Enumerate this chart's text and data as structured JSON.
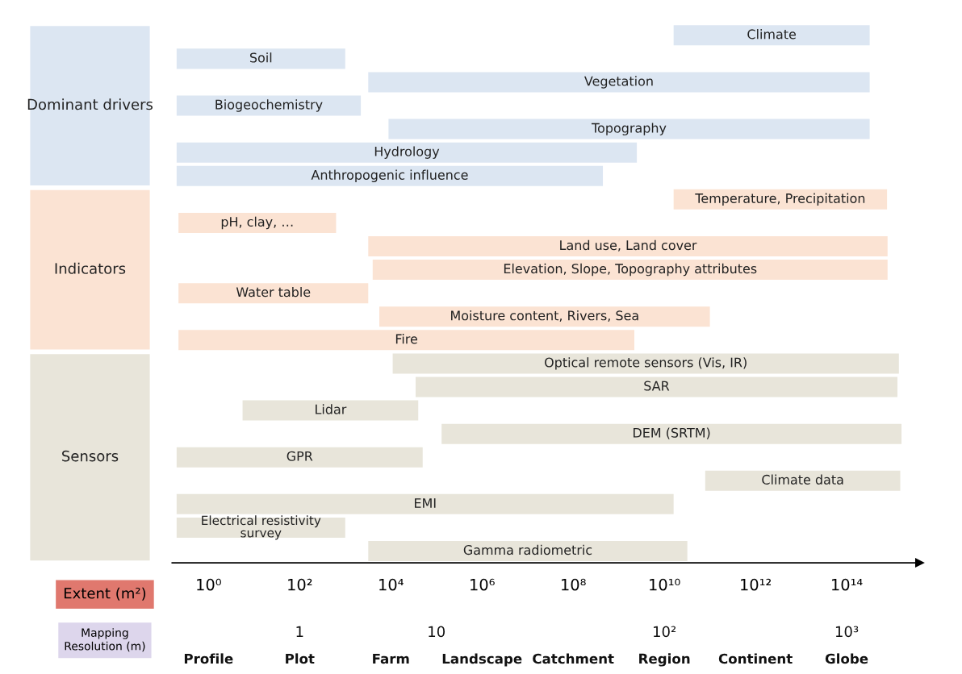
{
  "chart_data": {
    "type": "bar",
    "orientation": "horizontal",
    "log": "x",
    "categories": [
      null,
      null,
      null,
      "Dominant drivers",
      null,
      null,
      null,
      null,
      null,
      null,
      "Indicators",
      null,
      null,
      null,
      null,
      null,
      null,
      null,
      "Sensors",
      null,
      null,
      null,
      null
    ],
    "base": [
      16000000000.0,
      0.2,
      3200,
      0.2,
      8900,
      0.2,
      0.2,
      16000000000.0,
      0.22,
      3200,
      4000,
      0.22,
      5600,
      0.22,
      11000,
      35000,
      5.6,
      130000.0,
      0.2,
      79000000000.0,
      0.2,
      0.2,
      3200
    ],
    "values": [
      320000000000000.0,
      1000,
      320000000000000.0,
      2200,
      320000000000000.0,
      2500000000.0,
      450000000.0,
      770000000000000.0,
      630,
      790000000000000.0,
      790000000000000.0,
      3200,
      100000000000.0,
      2200000000.0,
      1400000000000000.0,
      1300000000000000.0,
      40000,
      1600000000000000.0,
      50000,
      1500000000000000.0,
      16000000000.0,
      1000,
      32000000000.0
    ],
    "value_labels": [
      "Climate",
      "Soil",
      "Vegetation",
      "Biogeochemistry",
      "Topography",
      "Hydrology",
      "Anthropogenic influence",
      "Temperature, Precipitation",
      "pH, clay, …",
      "Land use, Land cover",
      "Elevation, Slope, Topography attributes",
      "Water table",
      "Moisture content, Rivers, Sea",
      "Fire",
      "Optical remote sensors (Vis, IR)",
      "SAR",
      "Lidar",
      "DEM (SRTM)",
      "GPR",
      "Climate data",
      "EMI",
      "Electrical resistivity\nsurvey",
      "Gamma radiometric"
    ],
    "colors": [
      "#dce6f2",
      "#dce6f2",
      "#dce6f2",
      "#dce6f2",
      "#dce6f2",
      "#dce6f2",
      "#dce6f2",
      "#fbe3d3",
      "#fbe3d3",
      "#fbe3d3",
      "#fbe3d3",
      "#fbe3d3",
      "#fbe3d3",
      "#fbe3d3",
      "#e8e5da",
      "#e8e5da",
      "#e8e5da",
      "#e8e5da",
      "#e8e5da",
      "#e8e5da",
      "#e8e5da",
      "#e8e5da",
      "#e8e5da"
    ],
    "xlim": [
      0.16,
      4000000000000000.0
    ],
    "xticks": [
      {
        "value": 1,
        "label": "10⁰"
      },
      {
        "value": 100,
        "label": "10²"
      },
      {
        "value": 10000,
        "label": "10⁴"
      },
      {
        "value": 1000000.0,
        "label": "10⁶"
      },
      {
        "value": 100000000.0,
        "label": "10⁸"
      },
      {
        "value": 10000000000.0,
        "label": "10¹⁰"
      },
      {
        "value": 1000000000000.0,
        "label": "10¹²"
      },
      {
        "value": 100000000000000.0,
        "label": "10¹⁴"
      }
    ],
    "annotations": [
      "Extent (m²)",
      "Mapping\nResolution (m)",
      "Profile",
      "Plot",
      "Farm",
      "Landscape",
      "Catchment",
      "Region",
      "Continent",
      "Globe",
      "1",
      "10",
      "10²",
      "10³"
    ]
  }
}
